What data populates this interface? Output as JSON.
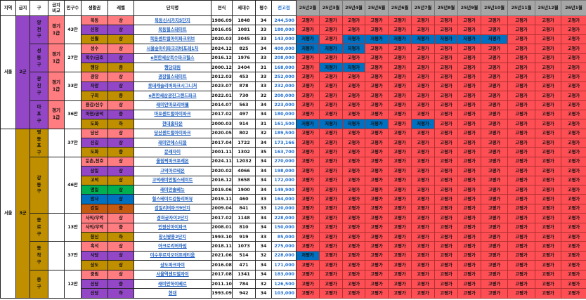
{
  "headers": {
    "region": "지역",
    "grade": "급지",
    "district": "구",
    "compare": "급지\n비교",
    "population": "인구수",
    "area": "생활권",
    "level": "레벨",
    "complex": "단지명",
    "year": "연식",
    "units": "세대수",
    "pyeong": "평수",
    "peak": "전고점",
    "months": [
      "25년2월",
      "25년3월",
      "25년4월",
      "25년5월",
      "25년6월",
      "25년7월",
      "25년8월",
      "25년9월",
      "25년10월",
      "25년11월",
      "25년12월",
      "26년1월"
    ]
  },
  "legend": {
    "high": "고평가",
    "low": "저평가"
  },
  "colors": {
    "pink": "#ff7c80",
    "purple": "#9347c7",
    "gold": "#bf8f00",
    "green": "#00b050",
    "blue": "#0070c0",
    "orange": "#c55a11",
    "high": "#ff4f55",
    "low": "#0070c0",
    "header_month": "#a6a6a6"
  },
  "groups": [
    {
      "region": "서울",
      "grade": "2군",
      "grade_color": "purple",
      "districts": [
        {
          "name": "양천구",
          "color": "purple",
          "compare": "경기 1급",
          "compare_color": "pink",
          "population": "43만",
          "rows": [
            {
              "area": "목동",
              "level": "상",
              "color": "pink",
              "name": "목동신시가지5단지",
              "year": "1986.09",
              "units": "1848",
              "pyeong": "34",
              "peak": "244,500",
              "trend": "HHHHHHHHHHHH"
            },
            {
              "area": "신정",
              "level": "상",
              "color": "purple",
              "name": "목동힐스테이트",
              "year": "2016.05",
              "units": "1081",
              "pyeong": "33",
              "peak": "180,000",
              "trend": "HHHHHHHHHHHH"
            },
            {
              "area": "신월",
              "level": "상",
              "color": "gold",
              "name": "목동센트럴아이파크위브",
              "year": "2020.03",
              "units": "3045",
              "pyeong": "33",
              "peak": "143,000",
              "trend": "LHLLLLLLLHHH"
            }
          ]
        },
        {
          "name": "성동구",
          "color": "purple",
          "compare": "경기 1급",
          "compare_color": "pink",
          "population": "27만",
          "rows": [
            {
              "area": "성수",
              "level": "상",
              "color": "pink",
              "name": "서울숲아이파크리버포레1차",
              "year": "2024.12",
              "units": "825",
              "pyeong": "34",
              "peak": "400,000",
              "trend": "LLLHHHHHHHHH"
            },
            {
              "area": "옥수/금호",
              "level": "상",
              "color": "purple",
              "name": "e편한세상옥수파크힐스",
              "year": "2016.12",
              "units": "1976",
              "pyeong": "33",
              "peak": "208,000",
              "trend": "HHHHHHHHHHHH"
            },
            {
              "area": "행당",
              "level": "중",
              "color": "gold",
              "name": "행당대림",
              "year": "2000.12",
              "units": "3404",
              "pyeong": "31",
              "peak": "168,000",
              "trend": "HLLHHHHHHHHH"
            }
          ]
        },
        {
          "name": "광진구",
          "color": "purple",
          "compare": "경기 1급",
          "compare_color": "pink",
          "population": "33만",
          "rows": [
            {
              "area": "광장",
              "level": "상",
              "color": "pink",
              "name": "광장힐스테이트",
              "year": "2012.03",
              "units": "453",
              "pyeong": "33",
              "peak": "252,000",
              "trend": "HHHHHHHHHHHH"
            },
            {
              "area": "자양",
              "level": "상",
              "color": "purple",
              "name": "롯데캐슬리버파크시그니처",
              "year": "2023.07",
              "units": "878",
              "pyeong": "33",
              "peak": "232,000",
              "trend": "HHHHHHHHHHHH"
            },
            {
              "area": "구의",
              "level": "중",
              "color": "gold",
              "name": "e편한세상광진그랜드파크",
              "year": "2022.01",
              "units": "730",
              "pyeong": "32",
              "peak": "200,000",
              "trend": "HHHHHHHHHHHH"
            }
          ]
        },
        {
          "name": "마포구",
          "color": "purple",
          "compare": "경기 1급",
          "compare_color": "pink",
          "population": "36만",
          "rows": [
            {
              "area": "용강/신수",
              "level": "상",
              "color": "pink",
              "name": "래미안마포리버웰",
              "year": "2014.07",
              "units": "563",
              "pyeong": "34",
              "peak": "223,000",
              "trend": "HHHHHHHHHHHH"
            },
            {
              "area": "아현/공덕",
              "level": "중",
              "color": "purple",
              "name": "마포센트럴아이파크",
              "year": "2017.02",
              "units": "497",
              "pyeong": "34",
              "peak": "180,000",
              "trend": "HHHHHHHHHHHH"
            },
            {
              "area": "도화",
              "level": "하",
              "color": "gold",
              "name": "현대홈타운",
              "year": "2000.03",
              "units": "914",
              "pyeong": "31",
              "peak": "161,500",
              "trend": "LLLLHLHHHHHH"
            }
          ]
        }
      ]
    },
    {
      "region": "서울",
      "grade": "3군",
      "grade_color": "gold",
      "districts": [
        {
          "name": "영등포구",
          "color": "gold",
          "compare": "",
          "compare_color": "white",
          "population": "37만",
          "rows": [
            {
              "area": "당산",
              "level": "상",
              "color": "pink",
              "name": "당산센트럴아이파크",
              "year": "2020.05",
              "units": "802",
              "pyeong": "32",
              "peak": "189,500",
              "trend": "HHHHHHHHHHHH"
            },
            {
              "area": "신길",
              "level": "상",
              "color": "purple",
              "name": "래미안에스티움",
              "year": "2017.04",
              "units": "1722",
              "pyeong": "34",
              "peak": "173,166",
              "trend": "HHHHHHHHHHHH"
            },
            {
              "area": "도화",
              "level": "중",
              "color": "gold",
              "name": "문래자이",
              "year": "2001.11",
              "units": "1302",
              "pyeong": "35",
              "peak": "163,700",
              "trend": "HHHHHHHHHHHH"
            }
          ]
        },
        {
          "name": "강동구",
          "color": "gold",
          "compare": "",
          "compare_color": "white",
          "population": "46만",
          "rows": [
            {
              "area": "둔촌,천호",
              "level": "상",
              "color": "pink",
              "name": "올림픽파크포레온",
              "year": "2024.11",
              "units": "12032",
              "pyeong": "34",
              "peak": "270,000",
              "trend": "HHHHHHHHHHHH"
            },
            {
              "area": "상일",
              "level": "상",
              "color": "purple",
              "name": "고덕아르테온",
              "year": "2020.02",
              "units": "4066",
              "pyeong": "34",
              "peak": "198,000",
              "trend": "HHHHHHHHHHHH"
            },
            {
              "area": "고덕",
              "level": "상",
              "color": "gold",
              "name": "고덕래미안힐스테이트",
              "year": "2016.12",
              "units": "3658",
              "pyeong": "34",
              "peak": "172,000",
              "trend": "HHHHHHHHHHHH"
            },
            {
              "area": "명일",
              "level": "상",
              "color": "green",
              "name": "래미안솔베뉴",
              "year": "2019.06",
              "units": "1900",
              "pyeong": "34",
              "peak": "149,900",
              "trend": "HHHHHHHHHHHH"
            },
            {
              "area": "암사",
              "level": "상",
              "color": "blue",
              "name": "힐스테이트강동리버뷰",
              "year": "2019.11",
              "units": "460",
              "pyeong": "33",
              "peak": "164,000",
              "trend": "HHHHHHHHHHHH"
            },
            {
              "area": "강일",
              "level": "중",
              "color": "orange",
              "name": "강일리버파크9단지",
              "year": "2009.04",
              "units": "841",
              "pyeong": "33",
              "peak": "120,000",
              "trend": "HHHHHHHHHHHH"
            }
          ]
        },
        {
          "name": "종로구",
          "color": "gold",
          "compare": "",
          "compare_color": "white",
          "population": "13만",
          "rows": [
            {
              "area": "사직/무악",
              "level": "상",
              "color": "pink",
              "name": "경희궁자이2단지",
              "year": "2017.02",
              "units": "1148",
              "pyeong": "34",
              "peak": "228,000",
              "trend": "HHHHHHHHHHHH"
            },
            {
              "area": "사직/무악",
              "level": "중",
              "color": "pink",
              "name": "인왕산아이파크",
              "year": "2008.01",
              "units": "810",
              "pyeong": "34",
              "peak": "150,000",
              "trend": "HHHHHHHHHHHH"
            },
            {
              "area": "창신",
              "level": "하",
              "color": "gold",
              "name": "창신쌍용2단지",
              "year": "1993.10",
              "units": "919",
              "pyeong": "33",
              "peak": "85,000",
              "trend": "HHHHHHHHHHHH"
            }
          ]
        },
        {
          "name": "동작구",
          "color": "gold",
          "compare": "",
          "compare_color": "white",
          "population": "37만",
          "rows": [
            {
              "area": "흑석",
              "level": "상",
              "color": "pink",
              "name": "아크로리버하임",
              "year": "2018.11",
              "units": "1073",
              "pyeong": "34",
              "peak": "275,000",
              "trend": "HHHHHHHHHHHH"
            },
            {
              "area": "사당",
              "level": "상",
              "color": "purple",
              "name": "이수푸르지오더프레티움",
              "year": "2021.06",
              "units": "514",
              "pyeong": "32",
              "peak": "228,000",
              "trend": "LHHHHHHHHHHH"
            },
            {
              "area": "상도",
              "level": "상",
              "color": "gold",
              "name": "상도파크자이",
              "year": "2016.08",
              "units": "471",
              "pyeong": "34",
              "peak": "171,000",
              "trend": "HHHHHHHHHHHH"
            }
          ]
        },
        {
          "name": "중구",
          "color": "gold",
          "compare": "",
          "compare_color": "white",
          "population": "12만",
          "rows": [
            {
              "area": "중림",
              "level": "상",
              "color": "pink",
              "name": "서울역센트럴자이",
              "year": "2017.08",
              "units": "1341",
              "pyeong": "34",
              "peak": "183,000",
              "trend": "HHHHHHHHHHHH"
            },
            {
              "area": "신당",
              "level": "중",
              "color": "purple",
              "name": "래미안하이베르",
              "year": "2011.10",
              "units": "784",
              "pyeong": "32",
              "peak": "126,500",
              "trend": "HHHHHHHHHHHH"
            },
            {
              "area": "신당",
              "level": "하",
              "color": "purple",
              "name": "현대",
              "year": "1993.09",
              "units": "942",
              "pyeong": "34",
              "peak": "103,000",
              "trend": "HHHHHHHHHHHH"
            }
          ]
        }
      ]
    }
  ]
}
